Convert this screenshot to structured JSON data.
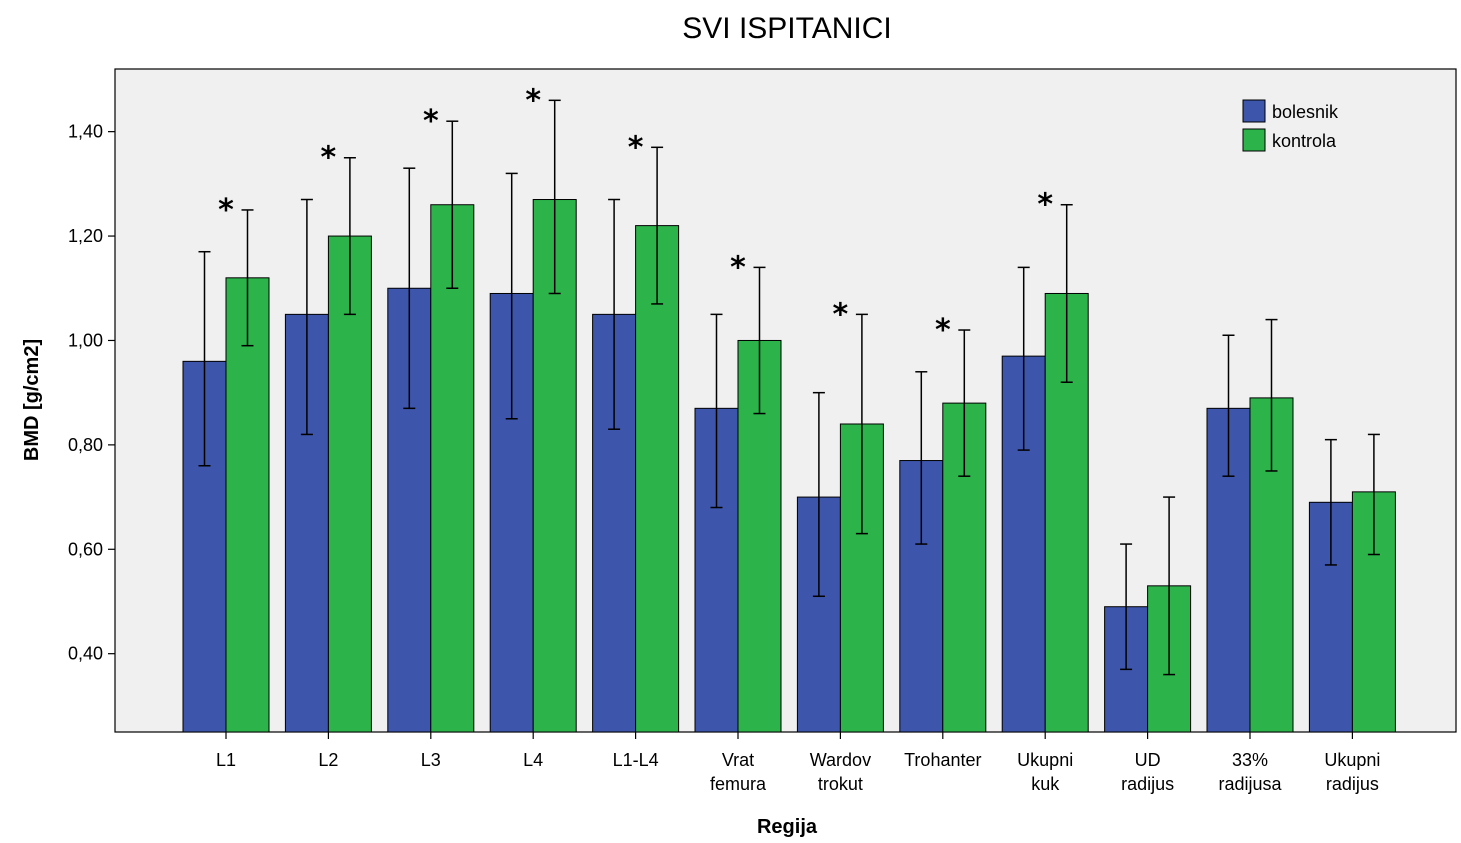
{
  "chart_data": {
    "type": "bar",
    "title": "SVI ISPITANICI",
    "xlabel": "Regija",
    "ylabel": "BMD [g/cm2]",
    "ylim": [
      0.25,
      1.52
    ],
    "yticks": [
      0.4,
      0.6,
      0.8,
      1.0,
      1.2,
      1.4
    ],
    "ytick_labels": [
      "0,40",
      "0,60",
      "0,80",
      "1,00",
      "1,20",
      "1,40"
    ],
    "categories": [
      [
        "L1"
      ],
      [
        "L2"
      ],
      [
        "L3"
      ],
      [
        "L4"
      ],
      [
        "L1-L4"
      ],
      [
        "Vrat",
        "femura"
      ],
      [
        "Wardov",
        "trokut"
      ],
      [
        "Trohanter"
      ],
      [
        "Ukupni",
        "kuk"
      ],
      [
        "UD",
        "radijus"
      ],
      [
        "33%",
        "radijusa"
      ],
      [
        "Ukupni",
        "radijus"
      ]
    ],
    "series": [
      {
        "name": "bolesnik",
        "color": "#3d55ab",
        "values": [
          0.96,
          1.05,
          1.1,
          1.09,
          1.05,
          0.87,
          0.7,
          0.77,
          0.97,
          0.49,
          0.87,
          0.69
        ],
        "error_low": [
          0.76,
          0.82,
          0.87,
          0.85,
          0.83,
          0.68,
          0.51,
          0.61,
          0.79,
          0.37,
          0.74,
          0.57
        ],
        "error_high": [
          1.17,
          1.27,
          1.33,
          1.32,
          1.27,
          1.05,
          0.9,
          0.94,
          1.14,
          0.61,
          1.01,
          0.81
        ]
      },
      {
        "name": "kontrola",
        "color": "#2cb34a",
        "values": [
          1.12,
          1.2,
          1.26,
          1.27,
          1.22,
          1.0,
          0.84,
          0.88,
          1.09,
          0.53,
          0.89,
          0.71
        ],
        "error_low": [
          0.99,
          1.05,
          1.1,
          1.09,
          1.07,
          0.86,
          0.63,
          0.74,
          0.92,
          0.36,
          0.75,
          0.59
        ],
        "error_high": [
          1.25,
          1.35,
          1.42,
          1.46,
          1.37,
          1.14,
          1.05,
          1.02,
          1.26,
          0.7,
          1.04,
          0.82
        ]
      }
    ],
    "significance_marker": "*",
    "significant": [
      true,
      true,
      true,
      true,
      true,
      true,
      true,
      true,
      true,
      false,
      false,
      false
    ],
    "legend_position": "top-right",
    "grid": false,
    "background": "#f0f0f0"
  }
}
